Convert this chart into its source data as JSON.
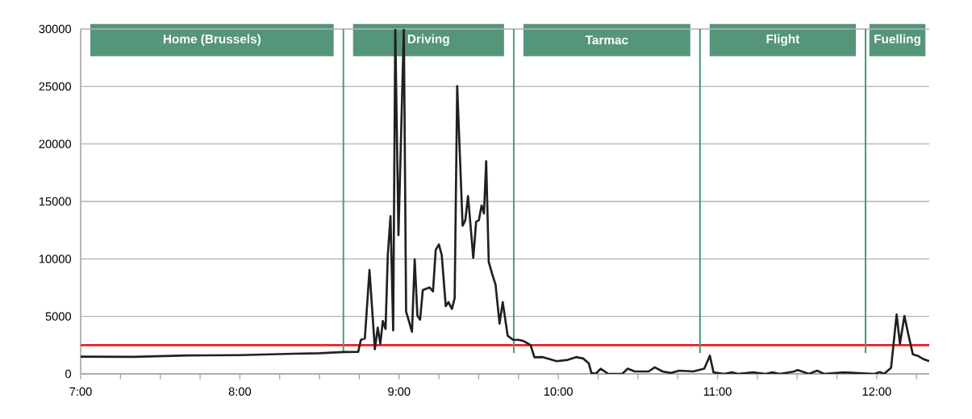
{
  "chart_data": {
    "type": "line",
    "color": "#231f20",
    "x": [
      7.0,
      7.333,
      7.667,
      8.0,
      8.333,
      8.5,
      8.65,
      8.743,
      8.76,
      8.785,
      8.814,
      8.848,
      8.866,
      8.882,
      8.898,
      8.915,
      8.929,
      8.946,
      8.963,
      8.976,
      8.996,
      9.03,
      9.044,
      9.081,
      9.098,
      9.115,
      9.132,
      9.149,
      9.191,
      9.213,
      9.23,
      9.25,
      9.268,
      9.293,
      9.31,
      9.332,
      9.349,
      9.365,
      9.399,
      9.416,
      9.433,
      9.466,
      9.484,
      9.501,
      9.518,
      9.533,
      9.547,
      9.563,
      9.585,
      9.606,
      9.631,
      9.651,
      9.682,
      9.716,
      9.75,
      9.783,
      9.826,
      9.85,
      9.902,
      9.99,
      10.06,
      10.112,
      10.156,
      10.191,
      10.208,
      10.235,
      10.266,
      10.314,
      10.401,
      10.436,
      10.48,
      10.567,
      10.606,
      10.655,
      10.707,
      10.76,
      10.847,
      10.917,
      10.952,
      10.975,
      11.04,
      11.092,
      11.127,
      11.223,
      11.303,
      11.346,
      11.39,
      11.477,
      11.504,
      11.574,
      11.626,
      11.67,
      11.792,
      11.985,
      12.02,
      12.046,
      12.09,
      12.125,
      12.146,
      12.174,
      12.198,
      12.227,
      12.256,
      12.291,
      12.33
    ],
    "values": [
      1500,
      1480,
      1600,
      1630,
      1750,
      1800,
      1900,
      1910,
      2960,
      3080,
      9040,
      2150,
      4020,
      2620,
      4600,
      3900,
      10320,
      13710,
      3780,
      30000,
      12070,
      30000,
      5420,
      3670,
      9970,
      5070,
      4720,
      7290,
      7520,
      7170,
      10790,
      11260,
      10320,
      5890,
      6240,
      5650,
      6590,
      25040,
      12890,
      13360,
      15470,
      10090,
      13240,
      13360,
      14650,
      13950,
      18500,
      9740,
      8690,
      7760,
      4370,
      6240,
      3320,
      2960,
      2960,
      2850,
      2500,
      1450,
      1460,
      1100,
      1220,
      1460,
      1340,
      930,
      80,
      0,
      450,
      0,
      0,
      450,
      210,
      210,
      570,
      210,
      80,
      280,
      210,
      450,
      1580,
      130,
      0,
      130,
      0,
      130,
      0,
      130,
      0,
      190,
      330,
      0,
      280,
      0,
      130,
      0,
      150,
      0,
      520,
      5160,
      2620,
      5040,
      3470,
      1700,
      1580,
      1300,
      1100
    ],
    "xlim": [
      7,
      12.33
    ],
    "ylim": [
      0,
      30000
    ],
    "xticks": [
      {
        "value": 7,
        "label": "7:00"
      },
      {
        "value": 7.25,
        "label": null
      },
      {
        "value": 7.5,
        "label": null
      },
      {
        "value": 7.75,
        "label": null
      },
      {
        "value": 8,
        "label": "8:00"
      },
      {
        "value": 8.25,
        "label": null
      },
      {
        "value": 8.5,
        "label": null
      },
      {
        "value": 8.75,
        "label": null
      },
      {
        "value": 9,
        "label": "9:00"
      },
      {
        "value": 9.25,
        "label": null
      },
      {
        "value": 9.5,
        "label": null
      },
      {
        "value": 9.75,
        "label": null
      },
      {
        "value": 10,
        "label": "10:00"
      },
      {
        "value": 10.25,
        "label": null
      },
      {
        "value": 10.5,
        "label": null
      },
      {
        "value": 10.75,
        "label": null
      },
      {
        "value": 11,
        "label": "11:00"
      },
      {
        "value": 11.25,
        "label": null
      },
      {
        "value": 11.5,
        "label": null
      },
      {
        "value": 11.75,
        "label": null
      },
      {
        "value": 12,
        "label": "12:00"
      },
      {
        "value": 12.25,
        "label": null
      }
    ],
    "yticks": [
      0,
      5000,
      10000,
      15000,
      20000,
      25000,
      30000
    ],
    "grid": "y",
    "ref_lines": [
      {
        "axis": "y",
        "value": 2500,
        "color": "#e8202a"
      },
      {
        "axis": "x",
        "value": 8.65,
        "color": "#4e9a7a"
      },
      {
        "axis": "x",
        "value": 9.72,
        "color": "#4e9a7a"
      },
      {
        "axis": "x",
        "value": 10.89,
        "color": "#4e9a7a"
      },
      {
        "axis": "x",
        "value": 11.93,
        "color": "#4e9a7a"
      }
    ],
    "annotations": [
      "Home (Brussels)",
      "Driving",
      "Tarmac",
      "Flight",
      "Fuelling"
    ]
  }
}
